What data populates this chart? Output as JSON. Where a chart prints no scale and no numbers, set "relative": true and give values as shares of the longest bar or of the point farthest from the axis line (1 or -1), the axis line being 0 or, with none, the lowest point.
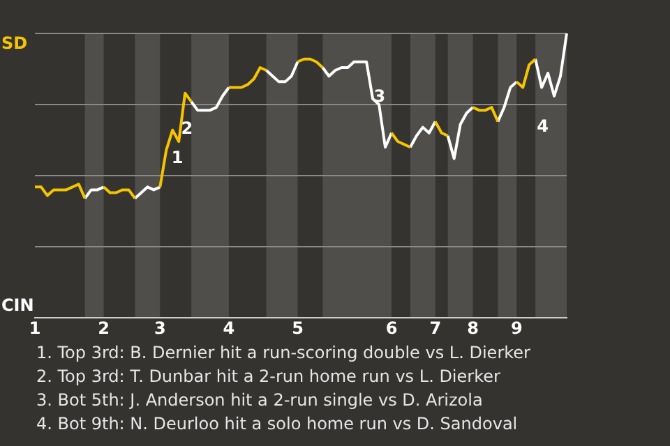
{
  "chart_data": {
    "type": "line",
    "relative": true,
    "categories": [
      "1",
      null,
      null,
      null,
      null,
      null,
      null,
      null,
      null,
      null,
      null,
      "2",
      null,
      null,
      null,
      null,
      null,
      null,
      null,
      null,
      "3",
      null,
      null,
      null,
      null,
      null,
      null,
      null,
      null,
      null,
      null,
      "4",
      null,
      null,
      null,
      null,
      null,
      null,
      null,
      null,
      null,
      null,
      "5",
      null,
      null,
      null,
      null,
      null,
      null,
      null,
      null,
      null,
      null,
      null,
      null,
      null,
      null,
      "6",
      null,
      null,
      null,
      null,
      null,
      null,
      "7",
      null,
      null,
      null,
      null,
      null,
      "8",
      null,
      null,
      null,
      null,
      null,
      null,
      "9",
      null,
      null,
      null,
      null,
      null,
      null,
      null,
      null
    ],
    "series": [
      {
        "color": "#f5c400",
        "values": [
          0.46,
          0.46,
          0.43,
          0.45,
          0.45,
          0.45,
          0.46,
          0.47,
          0.42,
          null,
          null,
          0.46,
          0.44,
          0.44,
          0.45,
          0.45,
          0.42,
          null,
          null,
          null,
          0.46,
          0.59,
          0.66,
          0.62,
          0.79,
          0.76,
          null,
          null,
          null,
          null,
          null,
          0.81,
          0.81,
          0.81,
          0.82,
          0.84,
          0.88,
          0.87,
          null,
          null,
          null,
          null,
          0.9,
          0.91,
          0.91,
          0.9,
          0.88,
          null,
          null,
          null,
          null,
          null,
          null,
          null,
          null,
          null,
          null,
          0.65,
          0.62,
          0.61,
          0.6,
          null,
          null,
          null,
          0.69,
          0.65,
          0.64,
          null,
          null,
          null,
          0.74,
          0.73,
          0.73,
          0.74,
          0.69,
          null,
          null,
          0.83,
          0.81,
          0.89,
          0.91,
          null,
          null,
          null,
          null,
          null
        ]
      },
      {
        "color": "#ffffff",
        "values": [
          null,
          null,
          null,
          null,
          null,
          null,
          null,
          null,
          0.42,
          0.45,
          0.45,
          0.46,
          null,
          null,
          null,
          null,
          0.42,
          0.44,
          0.46,
          0.45,
          0.46,
          null,
          null,
          null,
          null,
          0.76,
          0.73,
          0.73,
          0.73,
          0.74,
          0.78,
          0.81,
          null,
          null,
          null,
          null,
          null,
          0.87,
          0.85,
          0.83,
          0.83,
          0.85,
          0.9,
          null,
          null,
          null,
          0.88,
          0.85,
          0.87,
          0.88,
          0.88,
          0.9,
          0.9,
          0.9,
          0.77,
          0.75,
          0.6,
          0.65,
          null,
          null,
          0.6,
          0.64,
          0.67,
          0.65,
          0.69,
          null,
          0.64,
          0.56,
          0.68,
          0.72,
          0.74,
          null,
          null,
          null,
          0.69,
          0.74,
          0.81,
          0.83,
          null,
          null,
          0.91,
          0.81,
          0.86,
          0.78,
          0.85,
          1.0
        ]
      }
    ],
    "grid": "y",
    "annotations": [
      "SD",
      "CIN",
      "1",
      "2",
      "3",
      "4",
      "1. Top 3rd: B. Dernier hit a run-scoring double vs L. Dierker",
      "2. Top 3rd: T. Dunbar hit a 2-run home run vs L. Dierker",
      "3. Bot 5th: J. Anderson hit a 2-run single vs D. Arizola",
      "4. Bot 9th: N. Deurloo hit a solo home run vs D. Sandoval"
    ]
  }
}
